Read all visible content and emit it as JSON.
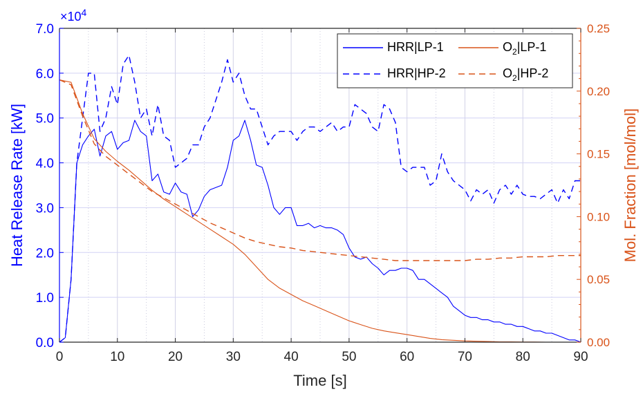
{
  "chart_data": {
    "type": "line",
    "xlabel": "Time [s]",
    "ylabel_left": "Heat Release Rate [kW]",
    "ylabel_right": "Mol. Fraction [mol/mol]",
    "left_axis_exponent_prefix": "×10",
    "left_axis_exponent_power": "4",
    "xlim": [
      0,
      90
    ],
    "ylim_left": [
      0,
      70000
    ],
    "ylim_right": [
      0,
      0.25
    ],
    "x_ticks": [
      0,
      10,
      20,
      30,
      40,
      50,
      60,
      70,
      80,
      90
    ],
    "x_tick_labels": [
      "0",
      "10",
      "20",
      "30",
      "40",
      "50",
      "60",
      "70",
      "80",
      "90"
    ],
    "y_left_ticks": [
      0,
      10000,
      20000,
      30000,
      40000,
      50000,
      60000,
      70000
    ],
    "y_left_tick_labels": [
      "0.0",
      "1.0",
      "2.0",
      "3.0",
      "4.0",
      "5.0",
      "6.0",
      "7.0"
    ],
    "y_right_ticks": [
      0,
      0.05,
      0.1,
      0.15,
      0.2,
      0.25
    ],
    "y_right_tick_labels": [
      "0.00",
      "0.05",
      "0.10",
      "0.15",
      "0.20",
      "0.25"
    ],
    "grid": true,
    "minor_grid_x": true,
    "legend_position": "top-right",
    "colors": {
      "blue": "#0000ff",
      "orange": "#d95319",
      "axis": "#262626"
    },
    "series": [
      {
        "name": "HRR|LP-1",
        "axis": "left",
        "style": "solid",
        "color": "#0000ff",
        "x": [
          0,
          1,
          2,
          3,
          4,
          5,
          6,
          7,
          8,
          9,
          10,
          11,
          12,
          13,
          14,
          15,
          16,
          17,
          18,
          19,
          20,
          21,
          22,
          23,
          24,
          25,
          26,
          27,
          28,
          29,
          30,
          31,
          32,
          33,
          34,
          35,
          36,
          37,
          38,
          39,
          40,
          41,
          42,
          43,
          44,
          45,
          46,
          47,
          48,
          49,
          50,
          51,
          52,
          53,
          54,
          55,
          56,
          57,
          58,
          59,
          60,
          61,
          62,
          63,
          64,
          65,
          66,
          67,
          68,
          69,
          70,
          71,
          72,
          73,
          74,
          75,
          76,
          77,
          78,
          79,
          80,
          81,
          82,
          83,
          84,
          85,
          86,
          87,
          88,
          89,
          90
        ],
        "y": [
          0,
          1000,
          14000,
          40000,
          44000,
          46000,
          47500,
          41500,
          46000,
          47000,
          43000,
          44500,
          45000,
          49500,
          47000,
          46000,
          36000,
          37500,
          33500,
          33000,
          35500,
          33500,
          33000,
          28000,
          29500,
          32500,
          34000,
          34500,
          35000,
          39000,
          45000,
          46000,
          49500,
          45000,
          39500,
          39000,
          35000,
          30000,
          28500,
          30000,
          30000,
          26000,
          26000,
          26500,
          25500,
          26000,
          25500,
          25500,
          25000,
          24000,
          21000,
          19000,
          18500,
          19000,
          17500,
          16500,
          15000,
          16000,
          16000,
          16500,
          16500,
          16000,
          14000,
          14000,
          13000,
          12000,
          11000,
          10000,
          8000,
          7000,
          6000,
          5500,
          5500,
          5000,
          5000,
          4500,
          4500,
          4000,
          4000,
          3500,
          3500,
          3000,
          2500,
          2500,
          2000,
          2000,
          1500,
          1000,
          500,
          500,
          0
        ]
      },
      {
        "name": "HRR|HP-2",
        "axis": "left",
        "style": "dashed",
        "color": "#0000ff",
        "x": [
          0,
          1,
          2,
          3,
          4,
          5,
          6,
          7,
          8,
          9,
          10,
          11,
          12,
          13,
          14,
          15,
          16,
          17,
          18,
          19,
          20,
          21,
          22,
          23,
          24,
          25,
          26,
          27,
          28,
          29,
          30,
          31,
          32,
          33,
          34,
          35,
          36,
          37,
          38,
          39,
          40,
          41,
          42,
          43,
          44,
          45,
          46,
          47,
          48,
          49,
          50,
          51,
          52,
          53,
          54,
          55,
          56,
          57,
          58,
          59,
          60,
          61,
          62,
          63,
          64,
          65,
          66,
          67,
          68,
          69,
          70,
          71,
          72,
          73,
          74,
          75,
          76,
          77,
          78,
          79,
          80,
          81,
          82,
          83,
          84,
          85,
          86,
          87,
          88,
          89,
          90
        ],
        "y": [
          0,
          1000,
          14000,
          40000,
          50000,
          60000,
          60000,
          47000,
          50000,
          57000,
          53000,
          62000,
          64000,
          58000,
          50000,
          52000,
          46000,
          53000,
          46000,
          45000,
          39000,
          40000,
          41000,
          44000,
          44000,
          48000,
          50000,
          54000,
          58000,
          63000,
          58000,
          60000,
          55000,
          52000,
          52000,
          48000,
          44000,
          46000,
          47000,
          47000,
          47000,
          45000,
          47000,
          48000,
          48000,
          47000,
          48000,
          49000,
          47000,
          48000,
          48000,
          53000,
          52000,
          51000,
          48000,
          47000,
          53000,
          52000,
          49000,
          39000,
          38000,
          39000,
          39000,
          39000,
          35000,
          36000,
          42000,
          38000,
          36000,
          35000,
          34000,
          31500,
          34000,
          33000,
          34000,
          31000,
          34000,
          35000,
          33000,
          35000,
          33000,
          32500,
          32500,
          32000,
          33000,
          34000,
          31000,
          34000,
          32000,
          36000,
          36000
        ]
      },
      {
        "name": "O2|LP-1",
        "axis": "right",
        "style": "solid",
        "color": "#d95319",
        "x": [
          0,
          2,
          4,
          6,
          8,
          10,
          12,
          14,
          16,
          18,
          20,
          22,
          24,
          26,
          28,
          30,
          32,
          34,
          36,
          38,
          40,
          42,
          44,
          46,
          48,
          50,
          52,
          54,
          56,
          58,
          60,
          62,
          64,
          66,
          68,
          70,
          72,
          74,
          76,
          78,
          80,
          82,
          84,
          86,
          88,
          90
        ],
        "y": [
          0.209,
          0.207,
          0.182,
          0.162,
          0.152,
          0.144,
          0.137,
          0.129,
          0.121,
          0.114,
          0.108,
          0.102,
          0.096,
          0.09,
          0.084,
          0.078,
          0.07,
          0.06,
          0.05,
          0.043,
          0.038,
          0.033,
          0.029,
          0.025,
          0.021,
          0.017,
          0.014,
          0.011,
          0.009,
          0.0075,
          0.006,
          0.0045,
          0.003,
          0.002,
          0.0015,
          0.001,
          0.0007,
          0.0005,
          0.0003,
          0.0002,
          0.0001,
          0.0001,
          0.0,
          0.0,
          0.0,
          0.0
        ]
      },
      {
        "name": "O2|HP-2",
        "axis": "right",
        "style": "dashed",
        "color": "#d95319",
        "x": [
          0,
          2,
          4,
          6,
          8,
          10,
          12,
          14,
          16,
          18,
          20,
          22,
          24,
          26,
          28,
          30,
          32,
          34,
          36,
          38,
          40,
          42,
          44,
          46,
          48,
          50,
          52,
          54,
          56,
          58,
          60,
          62,
          64,
          66,
          68,
          70,
          72,
          74,
          76,
          78,
          80,
          82,
          84,
          86,
          88,
          90
        ],
        "y": [
          0.209,
          0.205,
          0.18,
          0.158,
          0.148,
          0.141,
          0.134,
          0.127,
          0.12,
          0.115,
          0.11,
          0.105,
          0.1,
          0.095,
          0.091,
          0.087,
          0.083,
          0.08,
          0.078,
          0.076,
          0.075,
          0.073,
          0.072,
          0.071,
          0.07,
          0.069,
          0.068,
          0.067,
          0.066,
          0.065,
          0.065,
          0.065,
          0.065,
          0.065,
          0.065,
          0.065,
          0.066,
          0.066,
          0.067,
          0.067,
          0.068,
          0.068,
          0.068,
          0.069,
          0.069,
          0.069
        ]
      }
    ],
    "legend": [
      {
        "main": "HRR|LP-1",
        "sub": "",
        "tail": "",
        "color": "#0000ff",
        "style": "solid"
      },
      {
        "main": "O",
        "sub": "2",
        "tail": "|LP-1",
        "color": "#d95319",
        "style": "solid"
      },
      {
        "main": "HRR|HP-2",
        "sub": "",
        "tail": "",
        "color": "#0000ff",
        "style": "dashed"
      },
      {
        "main": "O",
        "sub": "2",
        "tail": "|HP-2",
        "color": "#d95319",
        "style": "dashed"
      }
    ]
  }
}
